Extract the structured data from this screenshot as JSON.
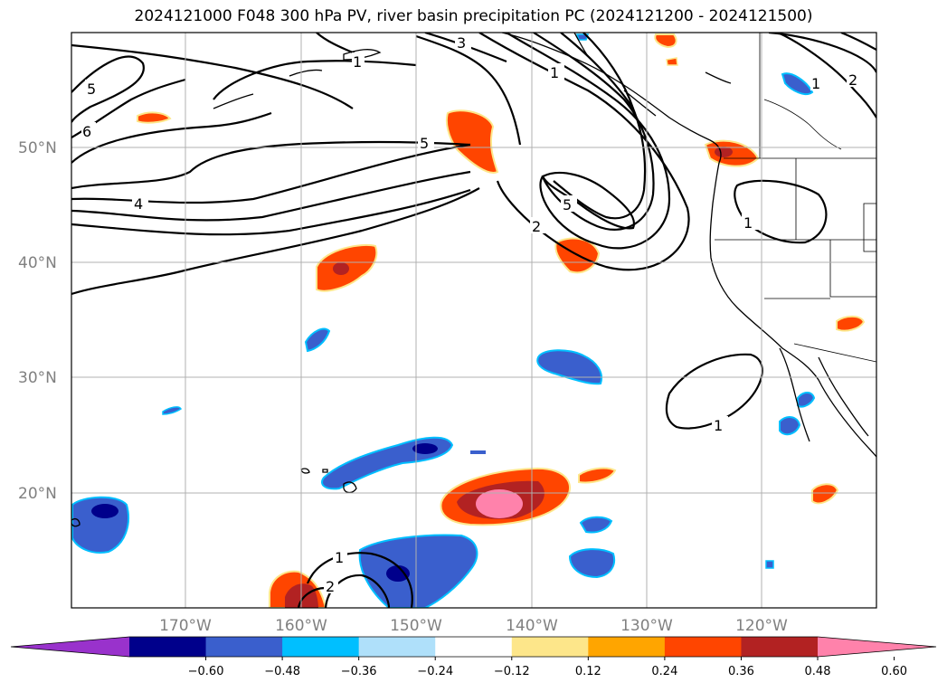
{
  "title": "2024121000 F048 300 hPa PV, river basin precipitation PC (2024121200 - 2024121500)",
  "lat_labels": [
    "50°N",
    "40°N",
    "30°N",
    "20°N"
  ],
  "lon_labels": [
    "170°W",
    "160°W",
    "150°W",
    "140°W",
    "130°W",
    "120°W"
  ],
  "contour_labels": [
    "5",
    "6",
    "3",
    "1",
    "5",
    "4",
    "5",
    "2",
    "1",
    "2",
    "1",
    "1",
    "1",
    "2",
    "1"
  ],
  "colorbar": {
    "ticks": [
      "−0.60",
      "−0.48",
      "−0.36",
      "−0.24",
      "−0.12",
      "0.12",
      "0.24",
      "0.36",
      "0.48",
      "0.60"
    ],
    "colors": [
      "#9932cc",
      "#00008b",
      "#3a5fcd",
      "#00bfff",
      "#afe0fa",
      "#ffffff",
      "#fde68a",
      "#ffa500",
      "#ff4500",
      "#b22222",
      "#ff82ab"
    ]
  },
  "colors": {
    "grid": "#b0b0b0",
    "neg_strong": "#00008b",
    "neg_mid": "#3a5fcd",
    "neg_light": "#00bfff",
    "pos_light": "#fde68a",
    "pos_mid": "#ffa500",
    "pos_strong": "#ff4500",
    "pos_darker": "#b22222",
    "pos_max": "#ff82ab"
  }
}
